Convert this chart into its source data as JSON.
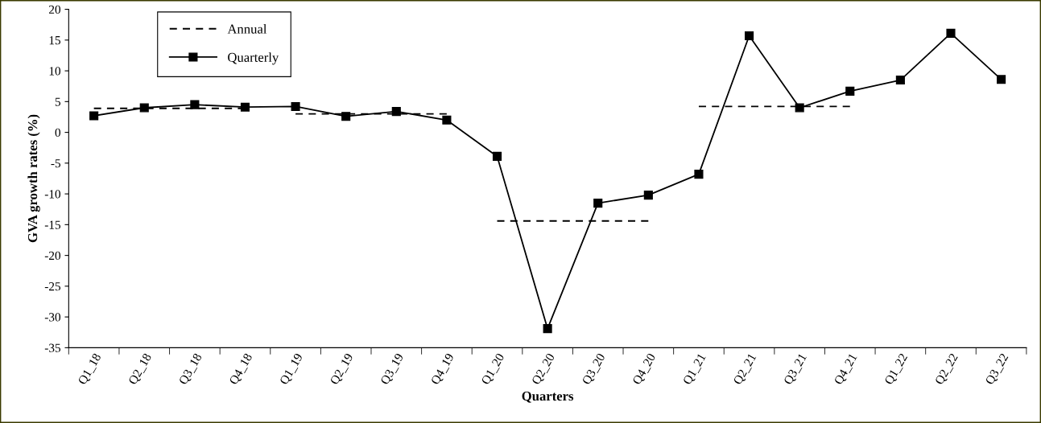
{
  "chart_data": {
    "type": "line",
    "xlabel": "Quarters",
    "ylabel": "GVA growth rates (%)",
    "categories": [
      "Q1_18",
      "Q2_18",
      "Q3_18",
      "Q4_18",
      "Q1_19",
      "Q2_19",
      "Q3_19",
      "Q4_19",
      "Q1_20",
      "Q2_20",
      "Q3_20",
      "Q4_20",
      "Q1_21",
      "Q2_21",
      "Q3_21",
      "Q4_21",
      "Q1_22",
      "Q2_22",
      "Q3_22"
    ],
    "series": [
      {
        "name": "Annual",
        "color": "#000000",
        "line_style": "dashed",
        "marker": "none",
        "values": [
          3.9,
          3.9,
          3.9,
          3.9,
          null,
          null,
          null,
          null,
          null,
          null,
          null,
          null,
          null,
          null,
          null,
          null,
          null,
          null,
          null
        ]
      },
      {
        "color": "#000000",
        "line_style": "dashed",
        "marker": "none",
        "values": [
          null,
          null,
          null,
          null,
          3.0,
          3.0,
          3.0,
          3.0,
          null,
          null,
          null,
          null,
          null,
          null,
          null,
          null,
          null,
          null,
          null
        ]
      },
      {
        "color": "#000000",
        "line_style": "dashed",
        "marker": "none",
        "values": [
          null,
          null,
          null,
          null,
          null,
          null,
          null,
          null,
          -14.4,
          -14.4,
          -14.4,
          -14.4,
          null,
          null,
          null,
          null,
          null,
          null,
          null
        ]
      },
      {
        "color": "#000000",
        "line_style": "dashed",
        "marker": "none",
        "values": [
          null,
          null,
          null,
          null,
          null,
          null,
          null,
          null,
          null,
          null,
          null,
          null,
          4.2,
          4.2,
          4.2,
          4.2,
          null,
          null,
          null
        ]
      },
      {
        "name": "Quarterly",
        "color": "#000000",
        "line_style": "solid",
        "marker": "square",
        "values": [
          2.7,
          4.0,
          4.5,
          4.1,
          4.2,
          2.6,
          3.4,
          2.0,
          -3.9,
          -31.9,
          -11.5,
          -10.2,
          -6.8,
          15.7,
          4.0,
          6.7,
          8.5,
          16.1,
          8.6
        ]
      }
    ],
    "ylim": [
      -35,
      20
    ],
    "yticks": [
      -35,
      -30,
      -25,
      -20,
      -15,
      -10,
      -5,
      0,
      5,
      10,
      15,
      20
    ],
    "grid": false,
    "legend": "top left"
  }
}
